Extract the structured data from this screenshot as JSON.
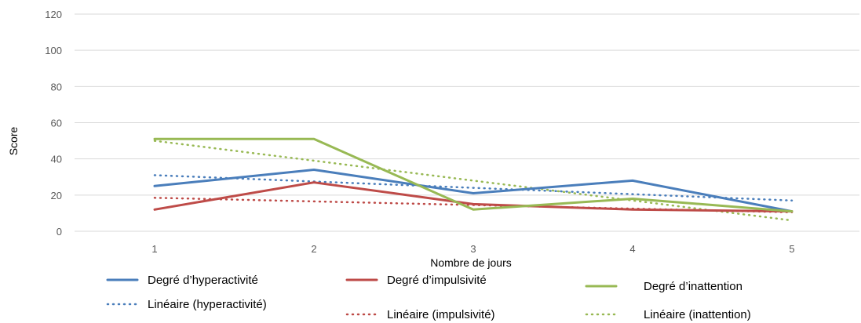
{
  "chart_data": {
    "type": "line",
    "title": "",
    "xlabel": "Nombre de jours",
    "ylabel": "Score",
    "x": [
      1,
      2,
      3,
      4,
      5
    ],
    "x_tick_labels": [
      "1",
      "2",
      "3",
      "4",
      "5"
    ],
    "ylim": [
      0,
      120
    ],
    "y_ticks": [
      0,
      20,
      40,
      60,
      80,
      100,
      120
    ],
    "y_tick_labels": [
      "0",
      "20",
      "40",
      "60",
      "80",
      "100",
      "120"
    ],
    "grid": true,
    "legend_position": "bottom",
    "series": [
      {
        "name": "Degré d’hyperactivité",
        "style": "solid",
        "color": "#4a7ebb",
        "values": [
          25,
          34,
          21,
          28,
          11
        ]
      },
      {
        "name": "Degré d’impulsivité",
        "style": "solid",
        "color": "#be4b48",
        "values": [
          12,
          27,
          15,
          12,
          11
        ]
      },
      {
        "name": "Degré d’inattention",
        "style": "solid",
        "color": "#98b954",
        "values": [
          51,
          51,
          12,
          18,
          11
        ]
      },
      {
        "name": "Linéaire (hyperactivité)",
        "style": "dotted",
        "color": "#4a7ebb",
        "values": [
          31,
          27.5,
          24,
          20.5,
          17
        ]
      },
      {
        "name": "Linéaire (impulsivité)",
        "style": "dotted",
        "color": "#be4b48",
        "values": [
          18.5,
          16.5,
          14.5,
          12.5,
          10.5
        ]
      },
      {
        "name": "Linéaire (inattention)",
        "style": "dotted",
        "color": "#98b954",
        "values": [
          50,
          39,
          28,
          17,
          6
        ]
      }
    ]
  }
}
